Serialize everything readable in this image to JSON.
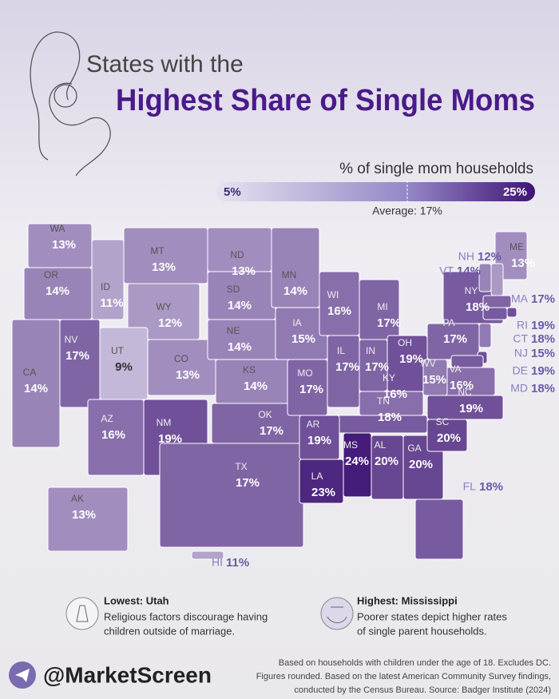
{
  "header": {
    "line1": "States with the",
    "line2": "Highest Share of Single Moms"
  },
  "legend": {
    "title": "% of single mom households",
    "min": {
      "value": 5,
      "label": "5%"
    },
    "max": {
      "value": 25,
      "label": "25%"
    },
    "average": {
      "value": 17,
      "label": "Average: 17%"
    }
  },
  "map": {
    "states": [
      {
        "abbr": "WA",
        "value": 13,
        "label": "13%"
      },
      {
        "abbr": "OR",
        "value": 14,
        "label": "14%"
      },
      {
        "abbr": "CA",
        "value": 14,
        "label": "14%"
      },
      {
        "abbr": "NV",
        "value": 17,
        "label": "17%"
      },
      {
        "abbr": "ID",
        "value": 11,
        "label": "11%"
      },
      {
        "abbr": "MT",
        "value": 13,
        "label": "13%"
      },
      {
        "abbr": "WY",
        "value": 12,
        "label": "12%"
      },
      {
        "abbr": "UT",
        "value": 9,
        "label": "9%"
      },
      {
        "abbr": "CO",
        "value": 13,
        "label": "13%"
      },
      {
        "abbr": "AZ",
        "value": 16,
        "label": "16%"
      },
      {
        "abbr": "NM",
        "value": 19,
        "label": "19%"
      },
      {
        "abbr": "ND",
        "value": 13,
        "label": "13%"
      },
      {
        "abbr": "SD",
        "value": 14,
        "label": "14%"
      },
      {
        "abbr": "NE",
        "value": 14,
        "label": "14%"
      },
      {
        "abbr": "KS",
        "value": 14,
        "label": "14%"
      },
      {
        "abbr": "OK",
        "value": 17,
        "label": "17%"
      },
      {
        "abbr": "TX",
        "value": 17,
        "label": "17%"
      },
      {
        "abbr": "MN",
        "value": 14,
        "label": "14%"
      },
      {
        "abbr": "IA",
        "value": 15,
        "label": "15%"
      },
      {
        "abbr": "WI",
        "value": 16,
        "label": "16%"
      },
      {
        "abbr": "MI",
        "value": 17,
        "label": "17%"
      },
      {
        "abbr": "IL",
        "value": 17,
        "label": "17%"
      },
      {
        "abbr": "IN",
        "value": 17,
        "label": "17%"
      },
      {
        "abbr": "OH",
        "value": 19,
        "label": "19%"
      },
      {
        "abbr": "MO",
        "value": 17,
        "label": "17%"
      },
      {
        "abbr": "KY",
        "value": 16,
        "label": "16%"
      },
      {
        "abbr": "TN",
        "value": 18,
        "label": "18%"
      },
      {
        "abbr": "AR",
        "value": 19,
        "label": "19%"
      },
      {
        "abbr": "LA",
        "value": 23,
        "label": "23%"
      },
      {
        "abbr": "MS",
        "value": 24,
        "label": "24%"
      },
      {
        "abbr": "AL",
        "value": 20,
        "label": "20%"
      },
      {
        "abbr": "GA",
        "value": 20,
        "label": "20%"
      },
      {
        "abbr": "SC",
        "value": 20,
        "label": "20%"
      },
      {
        "abbr": "NC",
        "value": 19,
        "label": "19%"
      },
      {
        "abbr": "VA",
        "value": 16,
        "label": "16%"
      },
      {
        "abbr": "WV",
        "value": 15,
        "label": "15%"
      },
      {
        "abbr": "PA",
        "value": 17,
        "label": "17%"
      },
      {
        "abbr": "NY",
        "value": 18,
        "label": "18%"
      },
      {
        "abbr": "FL",
        "value": 18,
        "label": "18%"
      },
      {
        "abbr": "ME",
        "value": 13,
        "label": "13%"
      },
      {
        "abbr": "NH",
        "value": 12,
        "label": "12%"
      },
      {
        "abbr": "VT",
        "value": 14,
        "label": "14%"
      },
      {
        "abbr": "MA",
        "value": 17,
        "label": "17%"
      },
      {
        "abbr": "RI",
        "value": 19,
        "label": "19%"
      },
      {
        "abbr": "CT",
        "value": 18,
        "label": "18%"
      },
      {
        "abbr": "NJ",
        "value": 15,
        "label": "15%"
      },
      {
        "abbr": "DE",
        "value": 19,
        "label": "19%"
      },
      {
        "abbr": "MD",
        "value": 18,
        "label": "18%"
      },
      {
        "abbr": "AK",
        "value": 13,
        "label": "13%"
      },
      {
        "abbr": "HI",
        "value": 11,
        "label": "11%"
      }
    ]
  },
  "notes": [
    {
      "heading": "Lowest: Utah",
      "text": [
        "Religious factors discourage having",
        "children outside of marriage."
      ]
    },
    {
      "heading": "Highest: Mississippi",
      "text": [
        "Poorer states depict higher rates",
        "of single parent households."
      ]
    }
  ],
  "footer": {
    "handle": "@MarketScreen",
    "source": [
      "Based on households with children under the age of 18. Excludes DC.",
      "Figures rounded. Based on the latest American Community Survey findings,",
      "conducted by the Census Bureau. Source: Badger Institute (2024)"
    ]
  }
}
